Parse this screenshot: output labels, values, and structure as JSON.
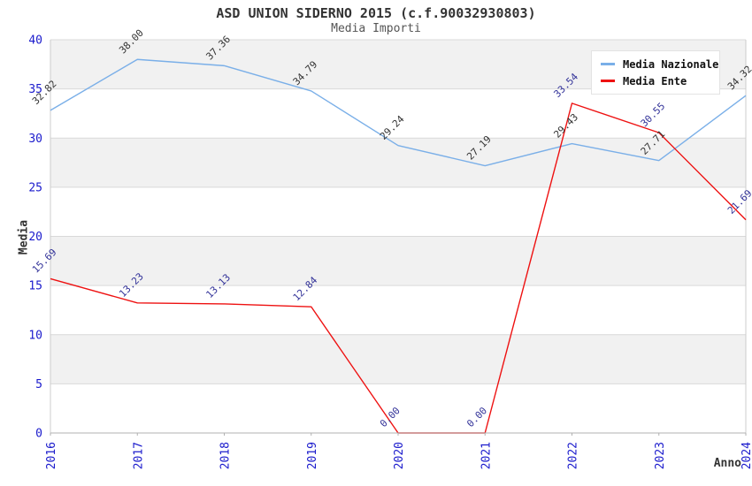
{
  "header": {
    "title": "ASD UNION SIDERNO 2015 (c.f.90032930803)",
    "subtitle": "Media Importi"
  },
  "legend": {
    "items": [
      {
        "label": "Media Nazionale",
        "color": "#7aafe8"
      },
      {
        "label": "Media Ente",
        "color": "#ee1111"
      }
    ]
  },
  "chart_data": {
    "type": "line",
    "title": "ASD UNION SIDERNO 2015 (c.f.90032930803)",
    "subtitle": "Media Importi",
    "xlabel": "Anno",
    "ylabel": "Media",
    "categories": [
      "2016",
      "2017",
      "2018",
      "2019",
      "2020",
      "2021",
      "2022",
      "2023",
      "2024"
    ],
    "series": [
      {
        "name": "Media Nazionale",
        "color": "#7aafe8",
        "label_color": "#333333",
        "values": [
          32.82,
          38.0,
          37.36,
          34.79,
          29.24,
          27.19,
          29.43,
          27.71,
          34.32
        ],
        "labels": [
          "32.82",
          "38.00",
          "37.36",
          "34.79",
          "29.24",
          "27.19",
          "29.43",
          "27.71",
          "34.32"
        ]
      },
      {
        "name": "Media Ente",
        "color": "#ee1111",
        "label_color": "#333399",
        "values": [
          15.69,
          13.23,
          13.13,
          12.84,
          0.0,
          0.0,
          33.54,
          30.55,
          21.69
        ],
        "labels": [
          "15.69",
          "13.23",
          "13.13",
          "12.84",
          "0.00",
          "0.00",
          "33.54",
          "30.55",
          "21.69"
        ]
      }
    ],
    "ylim": [
      0,
      40
    ],
    "yticks": [
      0,
      5,
      10,
      15,
      20,
      25,
      30,
      35,
      40
    ],
    "tick_color": "#1a1acc",
    "band_colors": [
      "#f1f1f1",
      "#ffffff"
    ],
    "grid_color": "#d9d9d9",
    "axis_color": "#b0b0b0",
    "legend_position": "top-right",
    "grid": "horizontal"
  }
}
